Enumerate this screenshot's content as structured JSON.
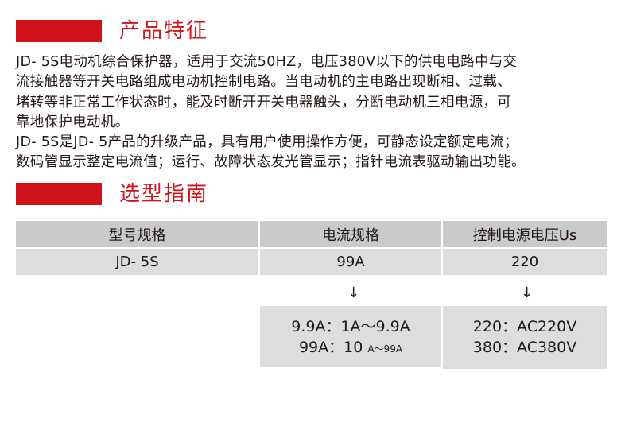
{
  "sections": [
    {
      "title": "产品特征"
    },
    {
      "title": "选型指南"
    }
  ],
  "features": {
    "paragraphs": [
      [
        "JD- 5S电动机综合保护器，适用于交流50HZ，电压380V以下的供电电路中与交",
        "流接触器等开关电路组成电动机控制电路。当电动机的主电路出现断相、过载、",
        "堵转等非正常工作状态时，能及时断开开关电器触头，分断电动机三相电源，可",
        "靠地保护电动机。"
      ],
      [
        "JD- 5S是JD- 5产品的升级产品，具有用户使用操作方便，可静态设定额定电流；",
        "数码管显示整定电流值；运行、故障状态发光管显示；指针电流表驱动输出功能。"
      ]
    ]
  },
  "table": {
    "headers": [
      "型号规格",
      "电流规格",
      "控制电源电压Us"
    ],
    "row": [
      "JD- 5S",
      "99A",
      "220"
    ]
  },
  "arrow": "↓",
  "current_options": {
    "line1": "9.9A：1A～9.9A",
    "line2_main": "99A：10 ",
    "line2_small": "A～99A"
  },
  "voltage_options": [
    "220：AC220V",
    "380：AC380V"
  ],
  "colors": {
    "accent": "#d0121b",
    "cell": "#dcdddd",
    "header": "#c9caca"
  }
}
